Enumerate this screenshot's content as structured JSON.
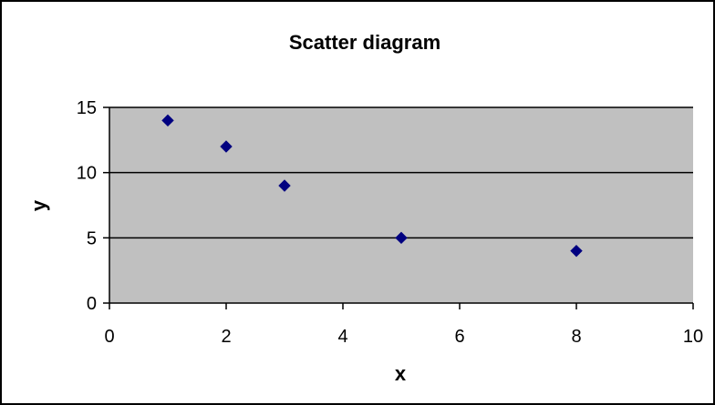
{
  "chart_data": {
    "type": "scatter",
    "title": "Scatter diagram",
    "xlabel": "x",
    "ylabel": "y",
    "xlim": [
      0,
      10
    ],
    "ylim": [
      0,
      15
    ],
    "x_ticks": [
      "0",
      "2",
      "4",
      "6",
      "8",
      "10"
    ],
    "y_ticks": [
      "0",
      "5",
      "10",
      "15"
    ],
    "grid": "horizontal major gridlines",
    "legend": "none",
    "series": [
      {
        "x": [
          1,
          2,
          3,
          5,
          8
        ],
        "y": [
          14,
          12,
          9,
          5,
          4
        ]
      }
    ],
    "colors": {
      "plot_background": "#c0c0c0",
      "marker": "#000080",
      "gridline": "#000000",
      "border": "#000000"
    },
    "marker_shape": "diamond"
  }
}
